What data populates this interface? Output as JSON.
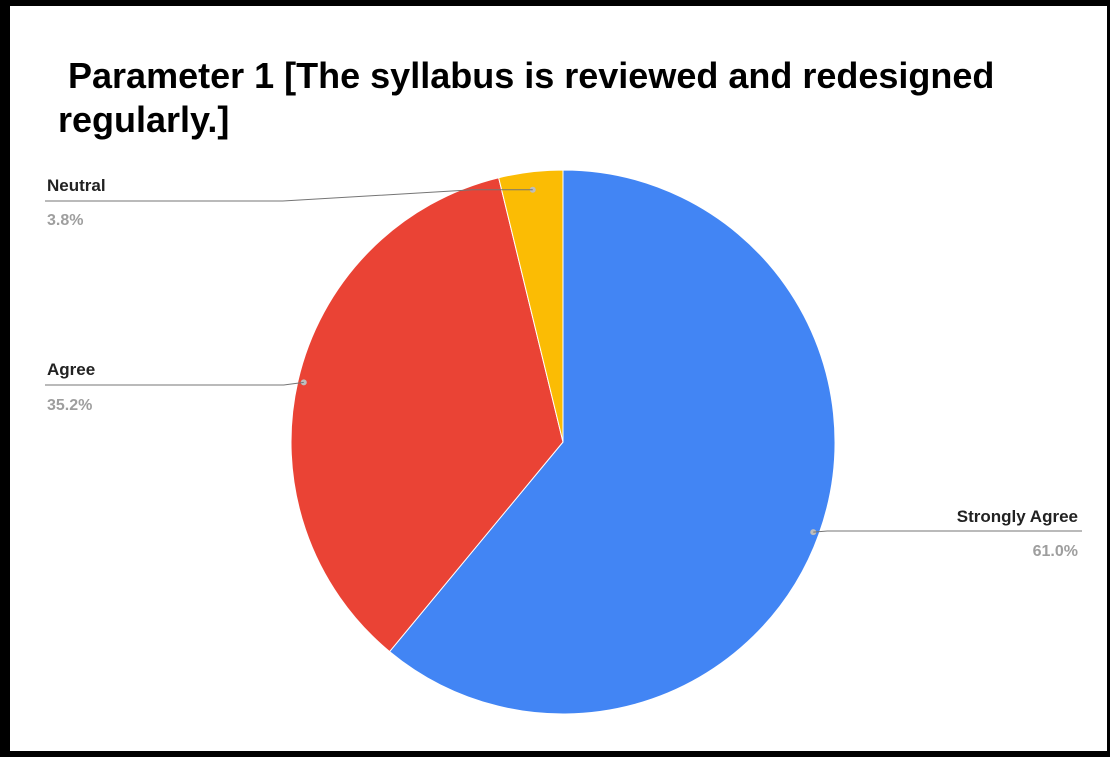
{
  "chart_data": {
    "type": "pie",
    "title": " Parameter 1 [The syllabus is reviewed and redesigned regularly.]",
    "slices": [
      {
        "label": "Strongly Agree",
        "value": 61.0,
        "value_label": "61.0%",
        "color": "#4285f4"
      },
      {
        "label": "Agree",
        "value": 35.2,
        "value_label": "35.2%",
        "color": "#ea4335"
      },
      {
        "label": "Neutral",
        "value": 3.8,
        "value_label": "3.8%",
        "color": "#fbbc04"
      }
    ],
    "legend": "none"
  }
}
